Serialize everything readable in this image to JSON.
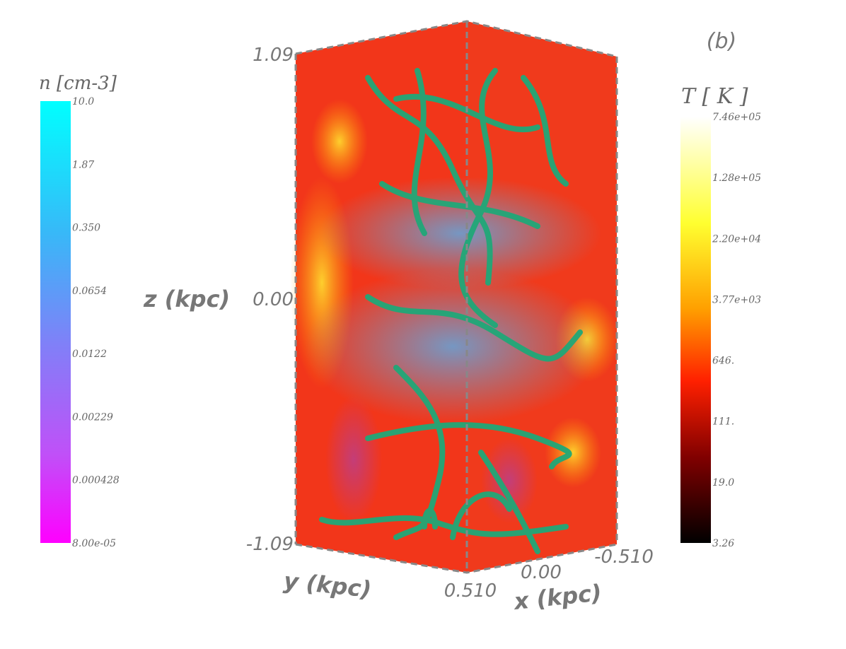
{
  "panel_label": "(b)",
  "density_colorbar": {
    "title": "n [cm-3]",
    "ticks": [
      "10.0",
      "1.87",
      "0.350",
      "0.0654",
      "0.0122",
      "0.00229",
      "0.000428",
      "8.00e-05"
    ]
  },
  "temperature_colorbar": {
    "title": "T [ K ]",
    "ticks": [
      "7.46e+05",
      "1.28e+05",
      "2.20e+04",
      "3.77e+03",
      "646.",
      "111.",
      "19.0",
      "3.26"
    ]
  },
  "axes": {
    "z_label": "z (kpc)",
    "z_ticks": [
      "1.09",
      "0.00",
      "-1.09"
    ],
    "y_label": "y (kpc)",
    "x_label": "x (kpc)",
    "x_ticks": [
      "0.510",
      "0.00",
      "-0.510"
    ]
  }
}
